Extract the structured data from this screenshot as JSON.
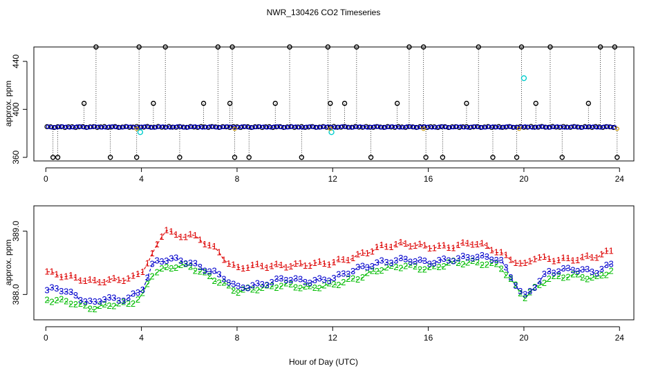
{
  "chart_data": {
    "title": "NWR_130426  CO2 Timeseries",
    "xlabel": "Hour of Day (UTC)",
    "colors": {
      "black": "#000000",
      "blue": "#0000cc",
      "cyan": "#00cccc",
      "red": "#dd0000",
      "green": "#00bb00",
      "orange": "#cc9900"
    },
    "panels": [
      {
        "type": "scatter",
        "ylabel": "approx. ppm",
        "xlim": [
          -0.5,
          24.6
        ],
        "ylim": [
          357,
          452
        ],
        "xticks": [
          0,
          4,
          8,
          12,
          16,
          20,
          24
        ],
        "yticks": [
          360,
          400,
          440
        ],
        "baseline": 385.3,
        "outlier_hours": [
          0.3,
          0.5,
          1.6,
          2.1,
          2.7,
          3.8,
          3.9,
          4.5,
          5.0,
          5.6,
          6.6,
          7.2,
          7.7,
          7.8,
          7.9,
          8.5,
          9.6,
          10.2,
          10.7,
          11.8,
          11.9,
          12.5,
          13.0,
          13.6,
          14.7,
          15.2,
          15.8,
          15.9,
          16.6,
          17.6,
          18.1,
          18.7,
          19.7,
          19.9,
          20.5,
          21.1,
          21.6,
          22.7,
          23.2,
          23.8,
          23.9
        ],
        "outlier_values": [
          360,
          360,
          405,
          452,
          360,
          360,
          452,
          405,
          452,
          360,
          405,
          452,
          405,
          452,
          360,
          360,
          405,
          452,
          360,
          452,
          405,
          405,
          452,
          360,
          405,
          452,
          452,
          360,
          360,
          405,
          452,
          360,
          360,
          452,
          405,
          452,
          360,
          405,
          452,
          452,
          360
        ],
        "cyan_points": [
          [
            3.95,
            381
          ],
          [
            11.95,
            381
          ],
          [
            20.0,
            426
          ]
        ]
      },
      {
        "type": "line",
        "ylabel": "approx. ppm",
        "xlim": [
          -0.5,
          24.6
        ],
        "ylim": [
          387.6,
          389.4
        ],
        "xticks": [
          0,
          4,
          8,
          12,
          16,
          20,
          24
        ],
        "yticks": [
          388.0,
          389.0
        ],
        "ytick_labels": [
          "388.0",
          "389.0"
        ],
        "series": [
          {
            "name": "1",
            "marker": "1",
            "color": "#dd0000",
            "x": [
              0,
              2,
              3.6,
              4,
              4.5,
              5.0,
              5.5,
              6.0,
              6.5,
              7.0,
              7.5,
              8.0,
              8.5,
              10,
              12,
              13,
              14,
              15,
              16,
              17,
              17.8,
              18.5,
              19.5,
              20,
              20.5,
              21,
              22,
              23,
              23.8
            ],
            "y": [
              388.35,
              388.2,
              388.25,
              388.35,
              388.65,
              389.05,
              388.9,
              388.95,
              388.85,
              388.75,
              388.55,
              388.4,
              388.45,
              388.45,
              388.5,
              388.6,
              388.75,
              388.8,
              388.75,
              388.75,
              388.82,
              388.75,
              388.55,
              388.45,
              388.6,
              388.55,
              388.55,
              388.6,
              388.7
            ]
          },
          {
            "name": "2",
            "marker": "2",
            "color": "#00bb00",
            "x": [
              0,
              0.5,
              1,
              1.5,
              2,
              2.5,
              3,
              3.5,
              4,
              4.5,
              5.0,
              5.5,
              6.0,
              6.5,
              7.0,
              7.5,
              8.0,
              9,
              10,
              11,
              12,
              13,
              14,
              15,
              16,
              17,
              18,
              19,
              19.5,
              20,
              20.5,
              21,
              22,
              23,
              23.8
            ],
            "y": [
              387.92,
              387.9,
              387.88,
              387.82,
              387.78,
              387.82,
              387.85,
              387.85,
              387.95,
              388.35,
              388.4,
              388.45,
              388.45,
              388.35,
              388.25,
              388.15,
              388.05,
              388.1,
              388.15,
              388.1,
              388.15,
              388.25,
              388.4,
              388.45,
              388.4,
              388.5,
              388.5,
              388.45,
              388.2,
              387.95,
              388.1,
              388.25,
              388.3,
              388.25,
              388.4
            ]
          },
          {
            "name": "3",
            "marker": "3",
            "color": "#0000cc",
            "x": [
              0,
              0.5,
              1,
              1.5,
              2,
              2.5,
              3,
              3.5,
              4,
              4.5,
              5.0,
              5.5,
              6.0,
              6.5,
              7.0,
              7.5,
              8.0,
              9,
              10,
              11,
              12,
              13,
              14,
              15,
              16,
              17,
              18,
              19,
              19.5,
              20,
              20.5,
              21,
              22,
              23,
              23.8
            ],
            "y": [
              388.05,
              388.1,
              388.02,
              387.92,
              387.85,
              387.95,
              387.9,
              387.95,
              388.05,
              388.5,
              388.55,
              388.55,
              388.5,
              388.42,
              388.35,
              388.25,
              388.1,
              388.15,
              388.25,
              388.2,
              388.25,
              388.4,
              388.5,
              388.55,
              388.5,
              388.55,
              388.6,
              388.55,
              388.25,
              387.95,
              388.15,
              388.35,
              388.4,
              388.35,
              388.5
            ]
          }
        ]
      }
    ]
  }
}
